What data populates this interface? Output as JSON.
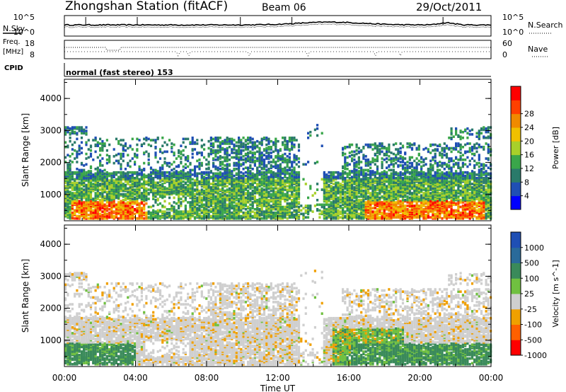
{
  "header": {
    "station": "Zhongshan Station (fitACF)",
    "beam": "Beam 06",
    "date": "29/Oct/2011"
  },
  "strip_labels": {
    "nsky": "N.Sky",
    "nsky_ticks": [
      "10^5",
      "10^0"
    ],
    "nsearch": "N.Search",
    "nsearch_ticks": [
      "10^5",
      "10^0"
    ],
    "freq": "Freq.",
    "freq_unit": "[MHz]",
    "freq_ticks": [
      "18",
      "8"
    ],
    "nave": "Nave",
    "nave_ticks": [
      "60",
      "0"
    ],
    "cpid": "CPID",
    "cpid_text": "normal (fast stereo) 153"
  },
  "chart_data": {
    "type": "heatmap",
    "x_axis": {
      "label": "Time UT",
      "ticks": [
        "00:00",
        "04:00",
        "08:00",
        "12:00",
        "16:00",
        "20:00",
        "00:00"
      ],
      "range_hours": [
        0,
        24
      ]
    },
    "panels": [
      {
        "id": "power",
        "ylabel": "Slant Range [km]",
        "yticks": [
          1000,
          2000,
          3000,
          4000
        ],
        "ylim": [
          180,
          4600
        ],
        "colorbar": {
          "label": "Power [dB]",
          "ticks": [
            "4",
            "8",
            "12",
            "16",
            "20",
            "24",
            "28"
          ],
          "colors": [
            "#0000ff",
            "#1f4fb4",
            "#2a7a6a",
            "#3aa64a",
            "#a8d02a",
            "#f0c000",
            "#f08a00",
            "#ff4000",
            "#ff0000"
          ]
        },
        "bands": [
          {
            "t0": 0.0,
            "t1": 13.0,
            "r0": 300,
            "r1": 1600,
            "level": "mixed"
          },
          {
            "t0": 0.0,
            "t1": 1.0,
            "r0": 2800,
            "r1": 3100,
            "level": "low"
          },
          {
            "t0": 0.5,
            "t1": 4.5,
            "r0": 400,
            "r1": 700,
            "level": "high"
          },
          {
            "t0": 14.5,
            "t1": 23.5,
            "r0": 400,
            "r1": 1700,
            "level": "mixed"
          },
          {
            "t0": 16.5,
            "t1": 23.5,
            "r0": 400,
            "r1": 800,
            "level": "high"
          }
        ]
      },
      {
        "id": "velocity",
        "ylabel": "Slant Range [km]",
        "yticks": [
          1000,
          2000,
          3000,
          4000
        ],
        "ylim": [
          180,
          4600
        ],
        "colorbar": {
          "label": "Velocity [m s^-1]",
          "ticks": [
            "1000",
            "500",
            "100",
            "25",
            "-25",
            "-100",
            "-500",
            "-1000"
          ],
          "colors": [
            "#1f4fb4",
            "#2a6a9a",
            "#3a8a5a",
            "#70c040",
            "#cfcfcf",
            "#f0a000",
            "#ff6000",
            "#ff0000"
          ]
        }
      }
    ]
  }
}
